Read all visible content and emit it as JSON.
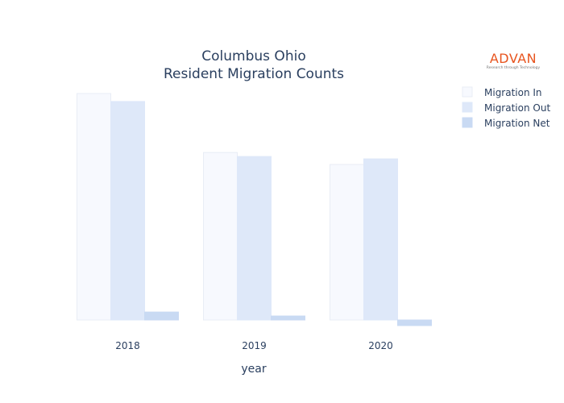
{
  "chart_data": {
    "type": "bar",
    "title_lines": [
      "Columbus Ohio",
      "Resident Migration Counts"
    ],
    "xlabel": "year",
    "ylabel": "",
    "categories": [
      "2018",
      "2019",
      "2020"
    ],
    "series": [
      {
        "name": "Migration In",
        "values": [
          28400,
          21000,
          19500
        ],
        "color": "#f7f9fe",
        "stroke": "#e9edf5"
      },
      {
        "name": "Migration Out",
        "values": [
          27400,
          20500,
          20200
        ],
        "color": "#dee8f9",
        "stroke": "#dee8f9"
      },
      {
        "name": "Migration Net",
        "values": [
          1000,
          500,
          -700
        ],
        "color": "#c9daf3",
        "stroke": "#c9daf3"
      }
    ],
    "ylim": [
      -1000,
      30000
    ],
    "grid": false,
    "legend_position": "top-right"
  },
  "logo": {
    "name": "ADVAN",
    "tagline": "Research through Technology"
  }
}
